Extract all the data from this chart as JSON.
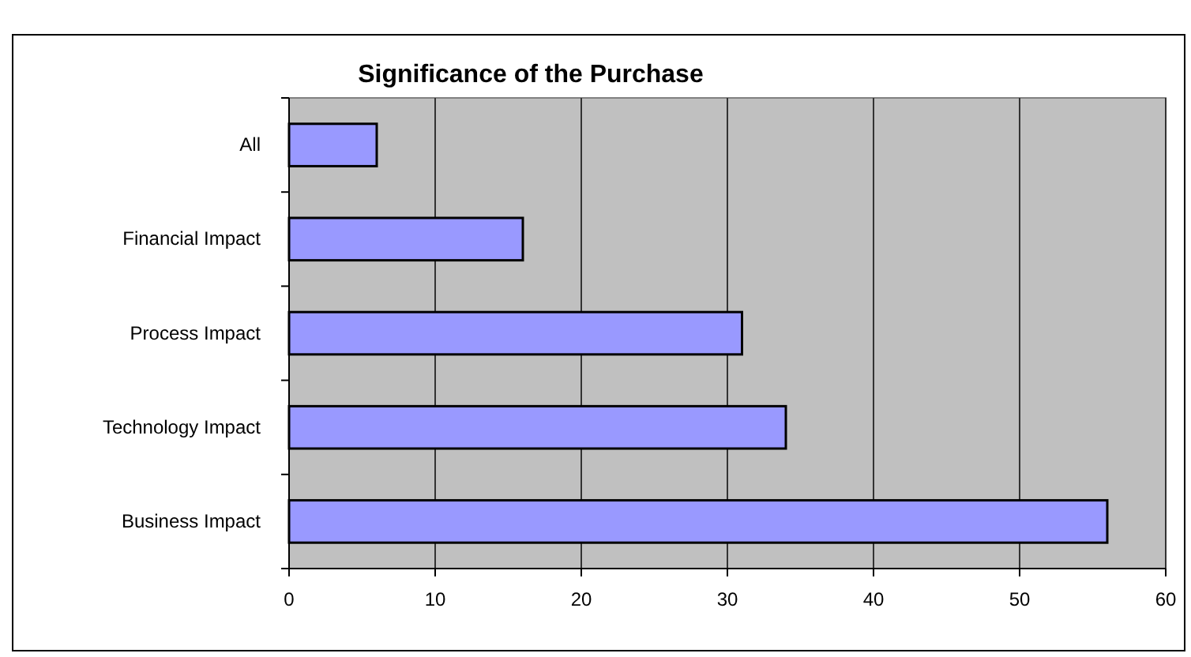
{
  "chart_data": {
    "type": "bar",
    "orientation": "horizontal",
    "title": "Significance of the Purchase",
    "categories": [
      "All",
      "Financial Impact",
      "Process Impact",
      "Technology Impact",
      "Business Impact"
    ],
    "values": [
      6,
      16,
      31,
      34,
      56
    ],
    "color": "#9999ff",
    "xlim": [
      0,
      60
    ],
    "xticks": [
      0,
      10,
      20,
      30,
      40,
      50,
      60
    ],
    "grid": "x"
  }
}
